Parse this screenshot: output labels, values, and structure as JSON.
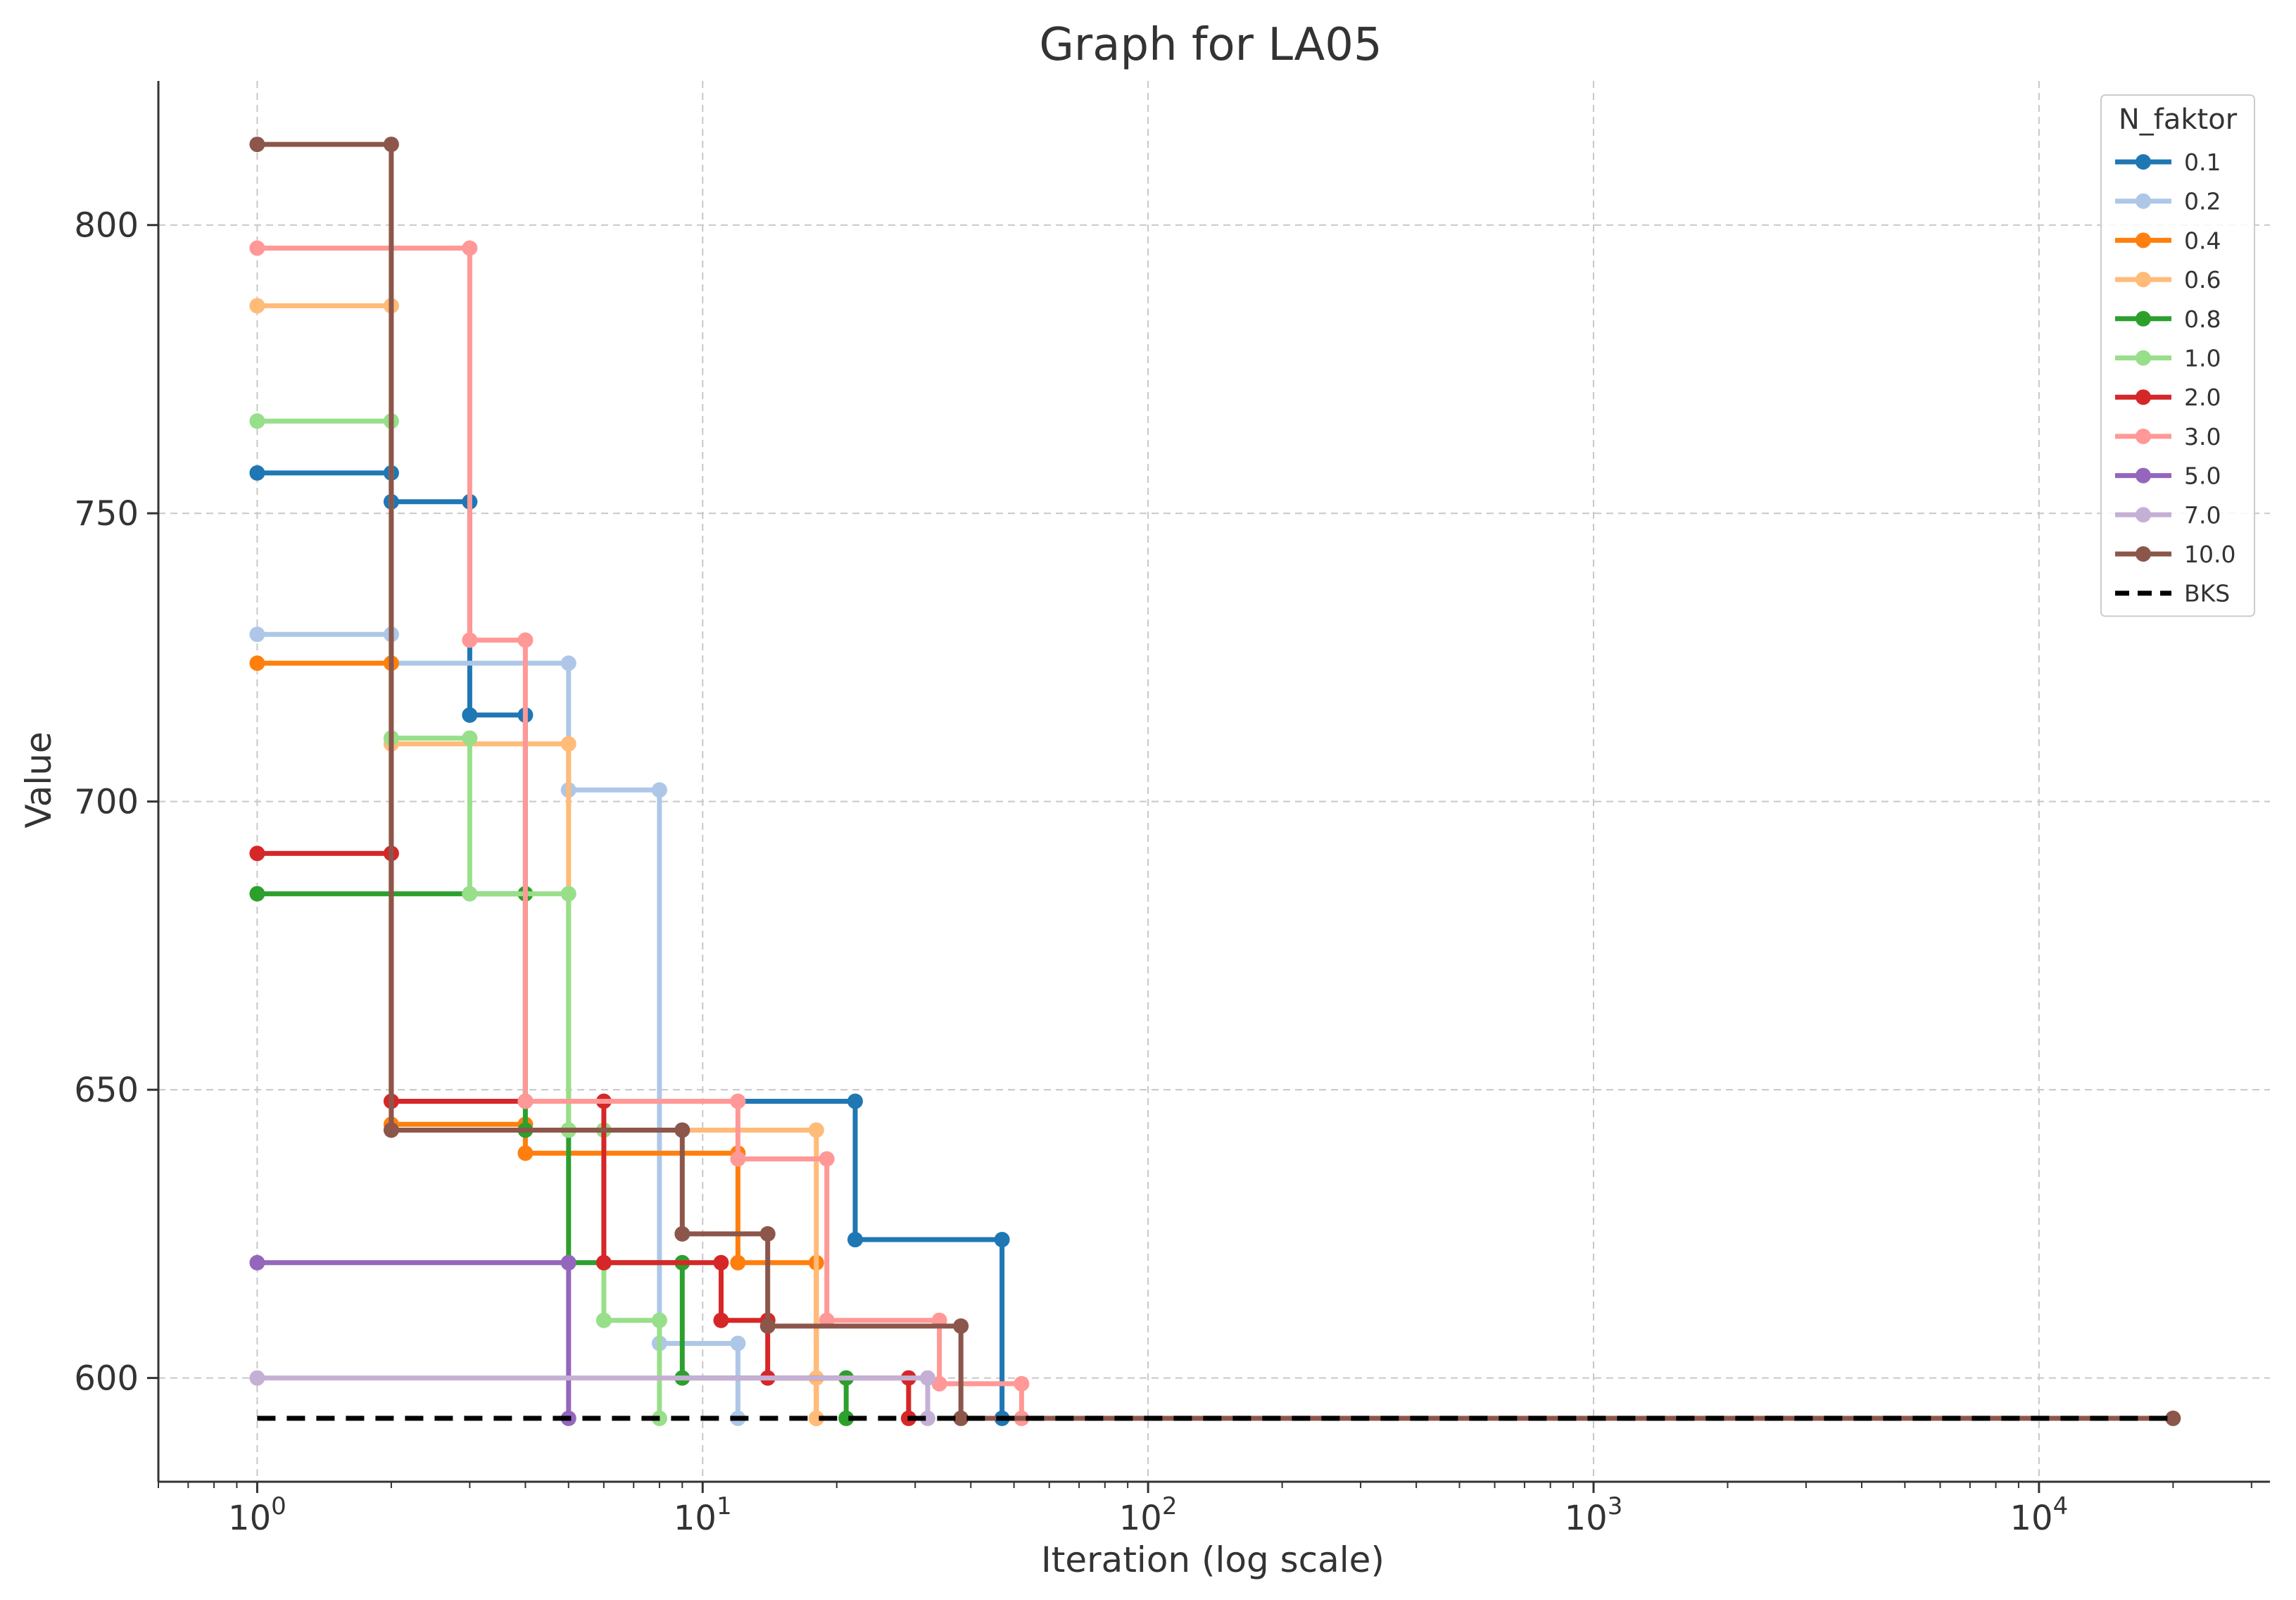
{
  "chart_data": {
    "type": "line",
    "title": "Graph for LA05",
    "xlabel": "Iteration (log scale)",
    "ylabel": "Value",
    "xscale": "log",
    "xlim": [
      0.6,
      33000
    ],
    "ylim": [
      582,
      825
    ],
    "grid": true,
    "legend_title": "N_faktor",
    "legend_position": "top-right",
    "xticks": [
      {
        "value": 1,
        "base": "10",
        "exp": "0"
      },
      {
        "value": 10,
        "base": "10",
        "exp": "1"
      },
      {
        "value": 100,
        "base": "10",
        "exp": "2"
      },
      {
        "value": 1000,
        "base": "10",
        "exp": "3"
      },
      {
        "value": 10000,
        "base": "10",
        "exp": "4"
      }
    ],
    "yticks": [
      {
        "value": 600,
        "label": "600"
      },
      {
        "value": 650,
        "label": "650"
      },
      {
        "value": 700,
        "label": "700"
      },
      {
        "value": 750,
        "label": "750"
      },
      {
        "value": 800,
        "label": "800"
      }
    ],
    "series": [
      {
        "name": "0.1",
        "color": "#1f77b4",
        "points": [
          [
            1,
            757
          ],
          [
            2,
            757
          ],
          [
            2,
            752
          ],
          [
            3,
            752
          ],
          [
            3,
            715
          ],
          [
            4,
            715
          ],
          [
            4,
            648
          ],
          [
            22,
            648
          ],
          [
            22,
            624
          ],
          [
            47,
            624
          ],
          [
            47,
            593
          ]
        ]
      },
      {
        "name": "0.2",
        "color": "#aec7e8",
        "points": [
          [
            1,
            729
          ],
          [
            2,
            729
          ],
          [
            2,
            724
          ],
          [
            5,
            724
          ],
          [
            5,
            702
          ],
          [
            8,
            702
          ],
          [
            8,
            606
          ],
          [
            12,
            606
          ],
          [
            12,
            593
          ]
        ]
      },
      {
        "name": "0.4",
        "color": "#ff7f0e",
        "points": [
          [
            1,
            724
          ],
          [
            2,
            724
          ],
          [
            2,
            644
          ],
          [
            4,
            644
          ],
          [
            4,
            639
          ],
          [
            12,
            639
          ],
          [
            12,
            620
          ],
          [
            18,
            620
          ],
          [
            18,
            593
          ]
        ]
      },
      {
        "name": "0.6",
        "color": "#ffbb78",
        "points": [
          [
            1,
            786
          ],
          [
            2,
            786
          ],
          [
            2,
            710
          ],
          [
            5,
            710
          ],
          [
            5,
            643
          ],
          [
            18,
            643
          ],
          [
            18,
            600
          ],
          [
            18,
            593
          ]
        ]
      },
      {
        "name": "0.8",
        "color": "#2ca02c",
        "points": [
          [
            1,
            684
          ],
          [
            4,
            684
          ],
          [
            4,
            643
          ],
          [
            5,
            643
          ],
          [
            5,
            620
          ],
          [
            9,
            620
          ],
          [
            9,
            600
          ],
          [
            21,
            600
          ],
          [
            21,
            593
          ]
        ]
      },
      {
        "name": "1.0",
        "color": "#98df8a",
        "points": [
          [
            1,
            766
          ],
          [
            2,
            766
          ],
          [
            2,
            711
          ],
          [
            3,
            711
          ],
          [
            3,
            684
          ],
          [
            5,
            684
          ],
          [
            5,
            643
          ],
          [
            6,
            643
          ],
          [
            6,
            610
          ],
          [
            8,
            610
          ],
          [
            8,
            593
          ]
        ]
      },
      {
        "name": "2.0",
        "color": "#d62728",
        "points": [
          [
            1,
            691
          ],
          [
            2,
            691
          ],
          [
            2,
            648
          ],
          [
            6,
            648
          ],
          [
            6,
            620
          ],
          [
            11,
            620
          ],
          [
            11,
            610
          ],
          [
            14,
            610
          ],
          [
            14,
            600
          ],
          [
            29,
            600
          ],
          [
            29,
            593
          ]
        ]
      },
      {
        "name": "3.0",
        "color": "#ff9896",
        "points": [
          [
            1,
            796
          ],
          [
            3,
            796
          ],
          [
            3,
            728
          ],
          [
            4,
            728
          ],
          [
            4,
            648
          ],
          [
            12,
            648
          ],
          [
            12,
            638
          ],
          [
            19,
            638
          ],
          [
            19,
            610
          ],
          [
            34,
            610
          ],
          [
            34,
            599
          ],
          [
            52,
            599
          ],
          [
            52,
            593
          ]
        ]
      },
      {
        "name": "5.0",
        "color": "#9467bd",
        "points": [
          [
            1,
            620
          ],
          [
            5,
            620
          ],
          [
            5,
            593
          ]
        ]
      },
      {
        "name": "7.0",
        "color": "#c5b0d5",
        "points": [
          [
            1,
            600
          ],
          [
            32,
            600
          ],
          [
            32,
            593
          ]
        ]
      },
      {
        "name": "10.0",
        "color": "#8c564b",
        "points": [
          [
            1,
            814
          ],
          [
            2,
            814
          ],
          [
            2,
            643
          ],
          [
            9,
            643
          ],
          [
            9,
            625
          ],
          [
            14,
            625
          ],
          [
            14,
            609
          ],
          [
            38,
            609
          ],
          [
            38,
            593
          ],
          [
            20000,
            593
          ]
        ]
      }
    ],
    "bks": {
      "name": "BKS",
      "color": "#000000",
      "value": 593,
      "x_range": [
        1,
        20000
      ]
    }
  }
}
